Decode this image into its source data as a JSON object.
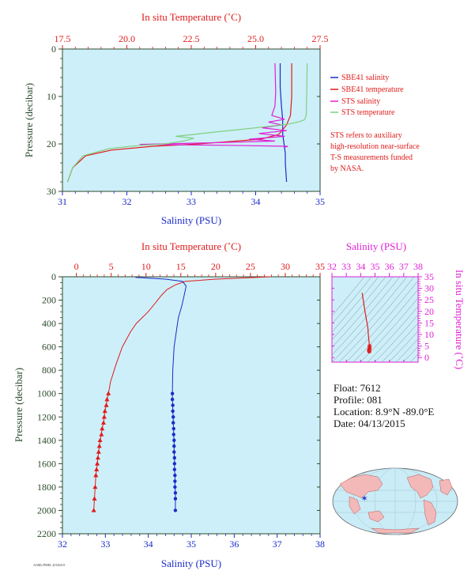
{
  "colors": {
    "panel_bg": "#cdeff9",
    "red": "#e11b1b",
    "blue": "#1a2bc9",
    "magenta": "#e01fd6",
    "green": "#7fd07f",
    "olive": "#9a9a72",
    "axis": "#2b4a2b",
    "land": "#f3b8b8",
    "ocean": "#c9ecf7",
    "marker": "#1a2bc9"
  },
  "chart_data": [
    {
      "type": "line",
      "title": "",
      "x_top_label": "In situ Temperature (˚C)",
      "x_top_ticks": [
        "17.5",
        "20.0",
        "22.5",
        "25.0",
        "27.5"
      ],
      "x_top_lim": [
        17.5,
        27.5
      ],
      "x_bottom_label": "Salinity (PSU)",
      "x_bottom_ticks": [
        "31",
        "32",
        "33",
        "34",
        "35"
      ],
      "x_bottom_lim": [
        31,
        35
      ],
      "ylabel": "Pressure (decibar)",
      "y_ticks": [
        "0",
        "10",
        "20",
        "30"
      ],
      "ylim": [
        0,
        30
      ],
      "y_inverted": true,
      "legend": {
        "placement": "right",
        "entries": [
          "SBE41 salinity",
          "SBE41 temperature",
          "STS salinity",
          "STS temperature"
        ]
      },
      "annotation": [
        "STS refers to auxiliary",
        "high-resolution near-surface",
        "T-S measurements funded",
        "by NASA."
      ],
      "series": [
        {
          "name": "SBE41 salinity",
          "axis": "salinity",
          "color_key": "blue",
          "x": [
            34.38,
            34.38,
            34.4,
            34.42,
            34.42,
            34.44,
            34.46,
            34.46,
            34.47,
            34.48
          ],
          "y": [
            3,
            8,
            12,
            15,
            18,
            20,
            22,
            24,
            26,
            28
          ]
        },
        {
          "name": "SBE41 temperature",
          "axis": "temperature",
          "color_key": "red",
          "x": [
            26.4,
            26.4,
            26.35,
            26.2,
            25.9,
            25.2,
            22.8,
            21.0,
            19.4,
            18.4,
            17.9,
            17.7
          ],
          "y": [
            3,
            10,
            14,
            16,
            18,
            19,
            20,
            20.5,
            21.3,
            22.5,
            25,
            28
          ]
        },
        {
          "name": "STS salinity",
          "axis": "salinity",
          "color_key": "magenta",
          "x": [
            34.3,
            34.31,
            34.3,
            34.25,
            34.45,
            34.2,
            34.4,
            34.1,
            34.48,
            34.05,
            34.45,
            33.9,
            34.3,
            33.5,
            32.9,
            32.2,
            33.6,
            34.5,
            34.45
          ],
          "y": [
            3,
            9,
            12,
            14,
            14.8,
            15.4,
            16,
            16.6,
            17.2,
            17.8,
            18.4,
            19,
            19.4,
            19.7,
            19.9,
            20.1,
            20.3,
            20.5,
            20.7
          ]
        },
        {
          "name": "STS temperature",
          "axis": "temperature",
          "color_key": "green",
          "x": [
            27.0,
            26.98,
            26.96,
            26.9,
            26.7,
            26.3,
            25.5,
            24.5,
            23.4,
            22.6,
            21.9,
            22.6,
            22.2,
            21.5,
            20.5,
            19.3,
            18.3,
            17.9,
            17.7
          ],
          "y": [
            3,
            10,
            14,
            14.9,
            15.3,
            15.8,
            16.3,
            16.9,
            17.5,
            18.0,
            18.4,
            18.8,
            19.4,
            20.0,
            20.3,
            21.0,
            22.5,
            25,
            28
          ]
        }
      ]
    },
    {
      "type": "line",
      "title": "",
      "x_top_label": "In situ Temperature (˚C)",
      "x_top_ticks": [
        "0",
        "5",
        "10",
        "15",
        "20",
        "25",
        "30",
        "35"
      ],
      "x_top_lim": [
        -2,
        35
      ],
      "x_bottom_label": "Salinity (PSU)",
      "x_bottom_ticks": [
        "32",
        "33",
        "34",
        "35",
        "36",
        "37",
        "38"
      ],
      "x_bottom_lim": [
        32,
        38
      ],
      "ylabel": "Pressure (decibar)",
      "y_ticks": [
        "0",
        "200",
        "400",
        "600",
        "800",
        "1000",
        "1200",
        "1400",
        "1600",
        "1800",
        "2000",
        "2200"
      ],
      "ylim": [
        0,
        2200
      ],
      "y_inverted": true,
      "series": [
        {
          "name": "",
          "axis": "temperature",
          "color_key": "red",
          "marker": "triangle",
          "x": [
            27.9,
            20,
            15.6,
            14.2,
            13.0,
            12.2,
            11.4,
            10.3,
            8.6,
            7.8,
            6.6,
            5.7,
            4.9,
            4.6,
            4.4,
            4.3,
            4.1,
            4.0,
            3.9,
            3.7,
            3.6,
            3.4,
            3.3,
            3.2,
            3.1,
            3.0,
            2.9,
            2.8,
            2.7,
            2.6,
            2.5
          ],
          "y": [
            0,
            20,
            40,
            70,
            110,
            160,
            220,
            300,
            400,
            470,
            600,
            750,
            900,
            1000,
            1050,
            1100,
            1150,
            1200,
            1250,
            1300,
            1350,
            1400,
            1450,
            1500,
            1550,
            1600,
            1650,
            1700,
            1800,
            1900,
            2000
          ],
          "markers_from_y": 1000
        },
        {
          "name": "",
          "axis": "salinity",
          "color_key": "blue",
          "marker": "circle",
          "x": [
            33.7,
            34.4,
            34.8,
            34.88,
            34.84,
            34.78,
            34.7,
            34.66,
            34.6,
            34.57,
            34.56,
            34.56,
            34.57,
            34.57,
            34.58,
            34.58,
            34.59,
            34.59,
            34.6,
            34.6,
            34.6,
            34.61,
            34.61,
            34.61,
            34.62,
            34.62,
            34.62,
            34.63,
            34.63,
            34.63
          ],
          "y": [
            5,
            20,
            40,
            80,
            150,
            250,
            350,
            450,
            600,
            800,
            1000,
            1050,
            1100,
            1150,
            1200,
            1250,
            1300,
            1350,
            1400,
            1450,
            1500,
            1550,
            1600,
            1650,
            1700,
            1750,
            1800,
            1850,
            1900,
            2000
          ],
          "markers_from_y": 1000
        }
      ]
    },
    {
      "type": "scatter",
      "title": "",
      "x_top_label": "Salinity (PSU)",
      "x_top_ticks": [
        "32",
        "33",
        "34",
        "35",
        "36",
        "37",
        "38"
      ],
      "x_top_lim": [
        32,
        38
      ],
      "ylabel_right": "In situ Temperature (˚C)",
      "y_ticks": [
        "0",
        "5",
        "10",
        "15",
        "20",
        "25",
        "30",
        "35"
      ],
      "ylim": [
        -2,
        35
      ],
      "series": [
        {
          "name": "",
          "color_key": "red",
          "x": [
            34.1,
            34.3,
            34.5,
            34.55,
            34.6,
            34.62,
            34.62,
            34.6,
            34.58,
            34.6
          ],
          "y": [
            28,
            20,
            13,
            9,
            6,
            5,
            4,
            3.5,
            3,
            2.6
          ]
        }
      ]
    }
  ],
  "float_info": {
    "float": "Float:  7612",
    "profile": "Profile:  081",
    "location": "Location:  8.9°N  -89.0°E",
    "date": "Date:  04/13/2015"
  },
  "map": {
    "marker_lat": 8.9,
    "marker_lon": -89.0
  },
  "footer_tag": "AOML/PMEL 20150415"
}
